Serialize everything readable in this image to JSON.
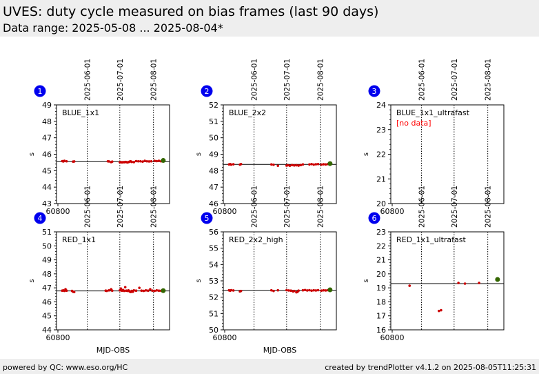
{
  "header": {
    "title": "UVES: duty cycle measured on bias frames (last 90 days)",
    "subtitle": "Data range: 2025-05-08 ... 2025-08-04*"
  },
  "footer": {
    "left": "powered by QC: www.eso.org/HC",
    "right": "created by trendPlotter v4.1.2 on 2025-08-05T11:25:31"
  },
  "colors": {
    "points": "#cc0000",
    "latest": "#336600",
    "badge": "#0000ee",
    "no_data": "#ff0000"
  },
  "date_markers": [
    "2025-06-01",
    "2025-07-01",
    "2025-08-01"
  ],
  "chart_data": [
    {
      "type": "scatter",
      "badge": "1",
      "label": "BLUE_1x1",
      "ylabel": "s",
      "xlabel": "",
      "x_tick_label": "60800",
      "xlim": [
        60800,
        60899
      ],
      "ylim": [
        43,
        49
      ],
      "yticks": [
        "43",
        "44",
        "45",
        "46",
        "47",
        "48",
        "49"
      ],
      "median": 45.55,
      "markers_mjd": [
        60827,
        60857,
        60888
      ],
      "points": [
        [
          60804,
          45.58
        ],
        [
          60805,
          45.56
        ],
        [
          60806,
          45.6
        ],
        [
          60808,
          45.57
        ],
        [
          60814,
          45.55
        ],
        [
          60815,
          45.56
        ],
        [
          60846,
          45.57
        ],
        [
          60847,
          45.56
        ],
        [
          60849,
          45.52
        ],
        [
          60850,
          45.55
        ],
        [
          60857,
          45.51
        ],
        [
          60858,
          45.52
        ],
        [
          60859,
          45.5
        ],
        [
          60860,
          45.52
        ],
        [
          60861,
          45.51
        ],
        [
          60862,
          45.53
        ],
        [
          60863,
          45.52
        ],
        [
          60864,
          45.5
        ],
        [
          60865,
          45.52
        ],
        [
          60866,
          45.55
        ],
        [
          60867,
          45.57
        ],
        [
          60868,
          45.53
        ],
        [
          60870,
          45.52
        ],
        [
          60872,
          45.58
        ],
        [
          60874,
          45.57
        ],
        [
          60876,
          45.57
        ],
        [
          60878,
          45.55
        ],
        [
          60880,
          45.6
        ],
        [
          60882,
          45.57
        ],
        [
          60884,
          45.56
        ],
        [
          60886,
          45.57
        ],
        [
          60889,
          45.6
        ],
        [
          60891,
          45.58
        ],
        [
          60893,
          45.6
        ],
        [
          60895,
          45.57
        ]
      ],
      "latest": [
        60897,
        45.62
      ]
    },
    {
      "type": "scatter",
      "badge": "2",
      "label": "BLUE_2x2",
      "ylabel": "s",
      "xlabel": "",
      "x_tick_label": "60800",
      "xlim": [
        60800,
        60899
      ],
      "ylim": [
        46,
        52
      ],
      "yticks": [
        "46",
        "47",
        "48",
        "49",
        "50",
        "51",
        "52"
      ],
      "median": 48.38,
      "markers_mjd": [
        60827,
        60857,
        60888
      ],
      "points": [
        [
          60804,
          48.38
        ],
        [
          60805,
          48.4
        ],
        [
          60806,
          48.37
        ],
        [
          60808,
          48.39
        ],
        [
          60814,
          48.37
        ],
        [
          60815,
          48.4
        ],
        [
          60843,
          48.38
        ],
        [
          60845,
          48.36
        ],
        [
          60849,
          48.3
        ],
        [
          60857,
          48.31
        ],
        [
          60858,
          48.33
        ],
        [
          60860,
          48.3
        ],
        [
          60862,
          48.34
        ],
        [
          60864,
          48.32
        ],
        [
          60866,
          48.33
        ],
        [
          60868,
          48.31
        ],
        [
          60870,
          48.34
        ],
        [
          60872,
          48.38
        ],
        [
          60878,
          48.38
        ],
        [
          60880,
          48.4
        ],
        [
          60882,
          48.37
        ],
        [
          60884,
          48.39
        ],
        [
          60886,
          48.4
        ],
        [
          60889,
          48.37
        ],
        [
          60891,
          48.39
        ],
        [
          60893,
          48.38
        ],
        [
          60895,
          48.4
        ]
      ],
      "latest": [
        60897,
        48.43
      ]
    },
    {
      "type": "scatter",
      "badge": "3",
      "label": "BLUE_1x1_ultrafast",
      "ylabel": "s",
      "xlabel": "",
      "x_tick_label": "60800",
      "xlim": [
        60800,
        60899
      ],
      "ylim": [
        20,
        24
      ],
      "yticks": [
        "20",
        "21",
        "22",
        "23",
        "24"
      ],
      "median": null,
      "markers_mjd": [
        60827,
        60857,
        60888
      ],
      "points": [],
      "latest": null,
      "note": "[no data]"
    },
    {
      "type": "scatter",
      "badge": "4",
      "label": "RED_1x1",
      "ylabel": "s",
      "xlabel": "MJD-OBS",
      "x_tick_label": "60800",
      "xlim": [
        60800,
        60899
      ],
      "ylim": [
        44,
        51
      ],
      "yticks": [
        "44",
        "45",
        "46",
        "47",
        "48",
        "49",
        "50",
        "51"
      ],
      "median": 46.78,
      "markers_mjd": [
        60827,
        60857,
        60888
      ],
      "points": [
        [
          60804,
          46.8
        ],
        [
          60805,
          46.82
        ],
        [
          60806,
          46.78
        ],
        [
          60807,
          46.9
        ],
        [
          60808,
          46.8
        ],
        [
          60813,
          46.78
        ],
        [
          60814,
          46.72
        ],
        [
          60815,
          46.7
        ],
        [
          60844,
          46.8
        ],
        [
          60845,
          46.78
        ],
        [
          60847,
          46.82
        ],
        [
          60849,
          46.9
        ],
        [
          60850,
          46.8
        ],
        [
          60857,
          46.82
        ],
        [
          60858,
          46.95
        ],
        [
          60859,
          46.8
        ],
        [
          60860,
          46.85
        ],
        [
          60861,
          46.78
        ],
        [
          60862,
          47.05
        ],
        [
          60863,
          46.8
        ],
        [
          60864,
          46.78
        ],
        [
          60865,
          46.82
        ],
        [
          60866,
          46.75
        ],
        [
          60867,
          46.7
        ],
        [
          60868,
          46.78
        ],
        [
          60869,
          46.72
        ],
        [
          60870,
          46.82
        ],
        [
          60872,
          46.8
        ],
        [
          60875,
          47.0
        ],
        [
          60877,
          46.8
        ],
        [
          60879,
          46.78
        ],
        [
          60881,
          46.82
        ],
        [
          60883,
          46.8
        ],
        [
          60885,
          46.9
        ],
        [
          60887,
          46.8
        ],
        [
          60889,
          46.78
        ],
        [
          60891,
          46.82
        ],
        [
          60893,
          46.8
        ],
        [
          60895,
          46.79
        ]
      ],
      "latest": [
        60897,
        46.8
      ]
    },
    {
      "type": "scatter",
      "badge": "5",
      "label": "RED_2x2_high",
      "ylabel": "s",
      "xlabel": "MJD-OBS",
      "x_tick_label": "60800",
      "xlim": [
        60800,
        60899
      ],
      "ylim": [
        50,
        56
      ],
      "yticks": [
        "50",
        "51",
        "52",
        "53",
        "54",
        "55",
        "56"
      ],
      "median": 52.42,
      "markers_mjd": [
        60827,
        60857,
        60888
      ],
      "points": [
        [
          60804,
          52.42
        ],
        [
          60805,
          52.4
        ],
        [
          60806,
          52.43
        ],
        [
          60808,
          52.41
        ],
        [
          60814,
          52.35
        ],
        [
          60815,
          52.38
        ],
        [
          60843,
          52.42
        ],
        [
          60845,
          52.38
        ],
        [
          60849,
          52.42
        ],
        [
          60857,
          52.43
        ],
        [
          60859,
          52.41
        ],
        [
          60861,
          52.4
        ],
        [
          60863,
          52.35
        ],
        [
          60864,
          52.38
        ],
        [
          60866,
          52.3
        ],
        [
          60867,
          52.32
        ],
        [
          60868,
          52.4
        ],
        [
          60872,
          52.42
        ],
        [
          60874,
          52.44
        ],
        [
          60876,
          52.41
        ],
        [
          60878,
          52.43
        ],
        [
          60880,
          52.4
        ],
        [
          60882,
          52.42
        ],
        [
          60884,
          52.41
        ],
        [
          60886,
          52.43
        ],
        [
          60889,
          52.4
        ],
        [
          60891,
          52.42
        ],
        [
          60893,
          52.41
        ],
        [
          60895,
          52.43
        ]
      ],
      "latest": [
        60897,
        52.45
      ]
    },
    {
      "type": "scatter",
      "badge": "6",
      "label": "RED_1x1_ultrafast",
      "ylabel": "s",
      "xlabel": "",
      "x_tick_label": "60800",
      "xlim": [
        60800,
        60899
      ],
      "ylim": [
        16,
        23
      ],
      "yticks": [
        "16",
        "17",
        "18",
        "19",
        "20",
        "21",
        "22",
        "23"
      ],
      "median": 19.3,
      "markers_mjd": [
        60827,
        60857,
        60888
      ],
      "points": [
        [
          60816,
          19.15
        ],
        [
          60843,
          17.35
        ],
        [
          60845,
          17.4
        ],
        [
          60861,
          19.35
        ],
        [
          60867,
          19.3
        ],
        [
          60880,
          19.35
        ]
      ],
      "latest": [
        60897,
        19.6
      ]
    }
  ]
}
